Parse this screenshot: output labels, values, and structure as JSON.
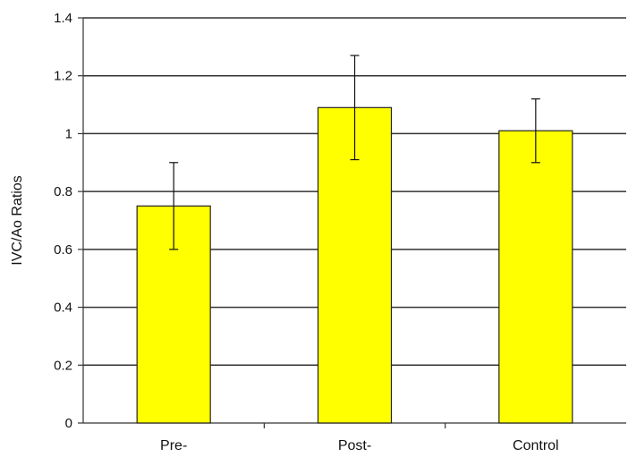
{
  "chart_data": {
    "type": "bar",
    "categories": [
      "Pre-",
      "Post-",
      "Control"
    ],
    "values": [
      0.75,
      1.09,
      1.01
    ],
    "error_bars": [
      {
        "low": 0.6,
        "high": 0.9
      },
      {
        "low": 0.91,
        "high": 1.27
      },
      {
        "low": 0.9,
        "high": 1.12
      }
    ],
    "title": "",
    "xlabel": "",
    "ylabel": "IVC/Ao Ratios",
    "ylim": [
      0,
      1.4
    ],
    "yticks": [
      0,
      0.2,
      0.4,
      0.6,
      0.8,
      1,
      1.2,
      1.4
    ],
    "ytick_labels": [
      "0",
      "0.2",
      "0.4",
      "0.6",
      "0.8",
      "1",
      "1.2",
      "1.4"
    ],
    "grid": true,
    "legend": "none",
    "colors": {
      "bar_fill": "#ffff00",
      "bar_stroke": "#222222",
      "gridline": "#333333",
      "axis": "#333333",
      "error_bar": "#111111"
    }
  }
}
